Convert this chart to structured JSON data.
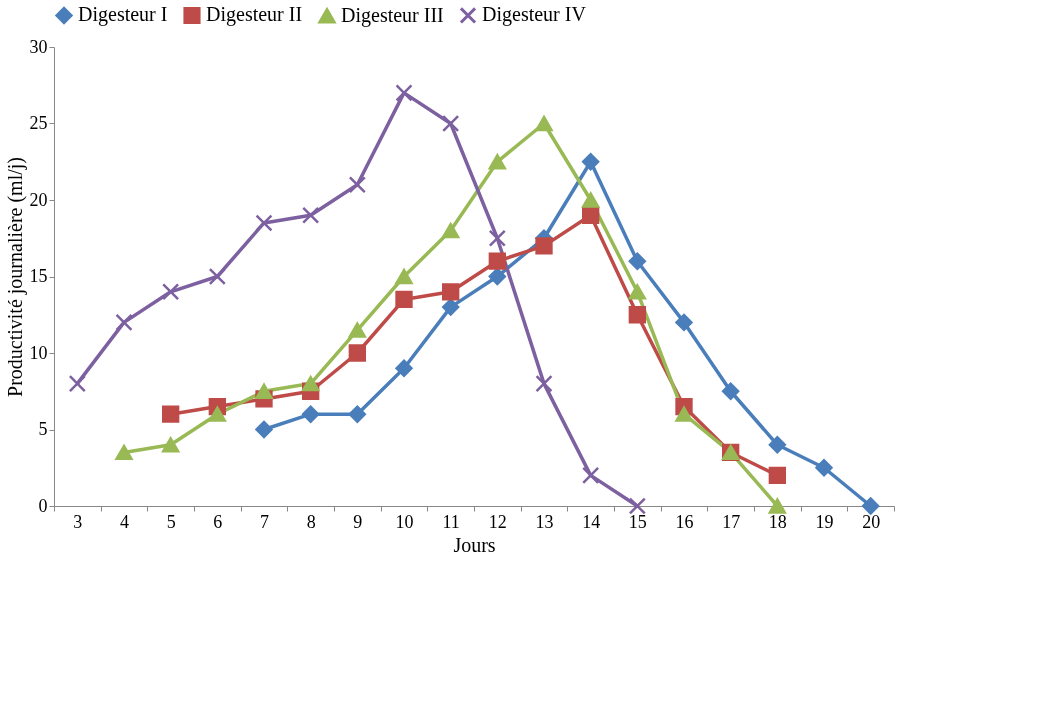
{
  "chart_data": {
    "type": "line",
    "xlabel": "Jours",
    "ylabel": "Productivité journalière (ml/j)",
    "categories": [
      "3",
      "4",
      "5",
      "6",
      "7",
      "8",
      "9",
      "10",
      "11",
      "12",
      "13",
      "14",
      "15",
      "16",
      "17",
      "18",
      "19",
      "20"
    ],
    "ylim": [
      0,
      30
    ],
    "yticks": [
      0,
      5,
      10,
      15,
      20,
      25,
      30
    ],
    "grid": false,
    "legend": "top",
    "line_style": "solid",
    "series": [
      {
        "name": "Digesteur I",
        "color": "#4a7ebb",
        "marker": "diamond",
        "values": [
          null,
          null,
          null,
          null,
          5,
          6,
          6,
          9,
          13,
          15,
          17.5,
          22.5,
          16,
          12,
          7.5,
          4,
          2.5,
          0
        ]
      },
      {
        "name": "Digesteur II",
        "color": "#be4b48",
        "marker": "square",
        "values": [
          null,
          null,
          6,
          6.5,
          7,
          7.5,
          10,
          13.5,
          14,
          16,
          17,
          19,
          12.5,
          6.5,
          3.5,
          2,
          null,
          null
        ]
      },
      {
        "name": "Digesteur III",
        "color": "#98b954",
        "marker": "triangle",
        "values": [
          null,
          3.5,
          4,
          6,
          7.5,
          8,
          11.5,
          15,
          18,
          22.5,
          25,
          20,
          14,
          6,
          3.5,
          0,
          null,
          null
        ]
      },
      {
        "name": "Digesteur IV",
        "color": "#7d60a0",
        "marker": "cross",
        "values": [
          8,
          12,
          14,
          15,
          18.5,
          19,
          21,
          27,
          25,
          17.5,
          8,
          2,
          0,
          null,
          null,
          null,
          null,
          null
        ]
      }
    ]
  }
}
